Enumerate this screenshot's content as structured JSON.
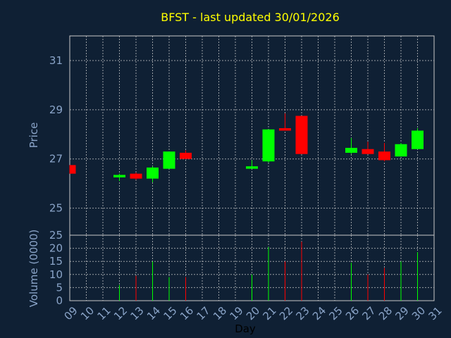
{
  "chart_data": {
    "type": "candlestick",
    "title": "BFST - last updated 30/01/2026",
    "xlabel": "Day",
    "colors": {
      "background": "#0f2034",
      "up": "#00ff00",
      "down": "#ff0000",
      "title": "#ffff00",
      "axis_text": "#8aa4c8",
      "grid": "#c8c8c8"
    },
    "x_ticks": [
      "09",
      "10",
      "11",
      "12",
      "13",
      "14",
      "15",
      "16",
      "17",
      "18",
      "19",
      "20",
      "21",
      "22",
      "23",
      "24",
      "25",
      "26",
      "27",
      "28",
      "29",
      "30",
      "31"
    ],
    "price_panel": {
      "ylabel": "Price",
      "ylim": [
        23.9,
        32.0
      ],
      "yticks": [
        25,
        27,
        29,
        31
      ],
      "grid": true
    },
    "volume_panel": {
      "ylabel": "Volume (0000)",
      "ylim": [
        0,
        25
      ],
      "yticks": [
        0,
        5,
        10,
        15,
        20,
        25
      ],
      "grid": true
    },
    "candles": [
      {
        "day": "09",
        "open": 26.75,
        "high": 26.75,
        "low": 26.4,
        "close": 26.4,
        "volume": 0
      },
      {
        "day": "12",
        "open": 26.25,
        "high": 26.4,
        "low": 26.1,
        "close": 26.35,
        "volume": 6
      },
      {
        "day": "13",
        "open": 26.4,
        "high": 26.45,
        "low": 26.15,
        "close": 26.2,
        "volume": 9.5
      },
      {
        "day": "14",
        "open": 26.2,
        "high": 26.7,
        "low": 26.05,
        "close": 26.65,
        "volume": 15
      },
      {
        "day": "15",
        "open": 26.6,
        "high": 27.3,
        "low": 26.6,
        "close": 27.3,
        "volume": 9
      },
      {
        "day": "16",
        "open": 27.25,
        "high": 27.35,
        "low": 27.0,
        "close": 27.0,
        "volume": 9
      },
      {
        "day": "20",
        "open": 26.6,
        "high": 26.95,
        "low": 26.6,
        "close": 26.7,
        "volume": 10
      },
      {
        "day": "21",
        "open": 26.9,
        "high": 28.2,
        "low": 26.85,
        "close": 28.2,
        "volume": 20.5
      },
      {
        "day": "22",
        "open": 28.25,
        "high": 28.85,
        "low": 28.15,
        "close": 28.15,
        "volume": 15
      },
      {
        "day": "23",
        "open": 28.75,
        "high": 28.75,
        "low": 27.2,
        "close": 27.2,
        "volume": 22.5
      },
      {
        "day": "26",
        "open": 27.25,
        "high": 27.85,
        "low": 27.2,
        "close": 27.45,
        "volume": 14.5
      },
      {
        "day": "27",
        "open": 27.4,
        "high": 27.7,
        "low": 27.2,
        "close": 27.2,
        "volume": 10
      },
      {
        "day": "28",
        "open": 27.3,
        "high": 27.65,
        "low": 26.9,
        "close": 26.95,
        "volume": 12.5
      },
      {
        "day": "29",
        "open": 27.1,
        "high": 27.65,
        "low": 27.1,
        "close": 27.6,
        "volume": 15
      },
      {
        "day": "30",
        "open": 27.4,
        "high": 28.25,
        "low": 27.4,
        "close": 28.15,
        "volume": 18.5
      }
    ]
  }
}
